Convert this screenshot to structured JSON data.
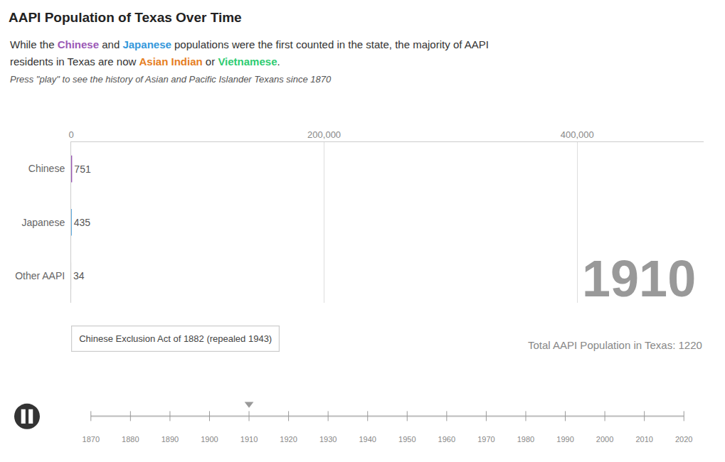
{
  "chart_data": {
    "type": "bar",
    "orientation": "horizontal",
    "title": "AAPI Population of Texas Over Time",
    "subtitle": [
      [
        {
          "text": "While the "
        },
        {
          "text": "Chinese",
          "color": "#9b59b6"
        },
        {
          "text": " and "
        },
        {
          "text": "Japanese",
          "color": "#3498db"
        },
        {
          "text": " populations were the first counted in the state, the majority of AAPI"
        }
      ],
      [
        {
          "text": "residents in Texas are now "
        },
        {
          "text": "Asian Indian",
          "color": "#e67e22"
        },
        {
          "text": " or "
        },
        {
          "text": "Vietnamese",
          "color": "#2ecc71"
        },
        {
          "text": "."
        }
      ]
    ],
    "annotations": [
      "Press \"play\" to see the history of Asian and Pacific Islander Texans since 1870",
      "Chinese Exclusion Act of 1882 (repealed 1943)",
      "1910",
      "Total AAPI Population in Texas: 1220"
    ],
    "categories": [
      "Chinese",
      "Japanese",
      "Other AAPI"
    ],
    "values": [
      751,
      435,
      34
    ],
    "colors": [
      "#9b59b6",
      "#3498db",
      "#aaaaaa"
    ],
    "data_labels": true,
    "xlim": [
      0,
      500000
    ],
    "xticks": [
      0,
      {
        "value": 200000,
        "label": "200,000"
      },
      {
        "value": 400000,
        "label": "400,000"
      }
    ],
    "grid": true,
    "timeline_years": [
      1870,
      1880,
      1890,
      1900,
      1910,
      1920,
      1930,
      1940,
      1950,
      1960,
      1970,
      1980,
      1990,
      2000,
      2010,
      2020
    ],
    "current_year": 1910
  }
}
